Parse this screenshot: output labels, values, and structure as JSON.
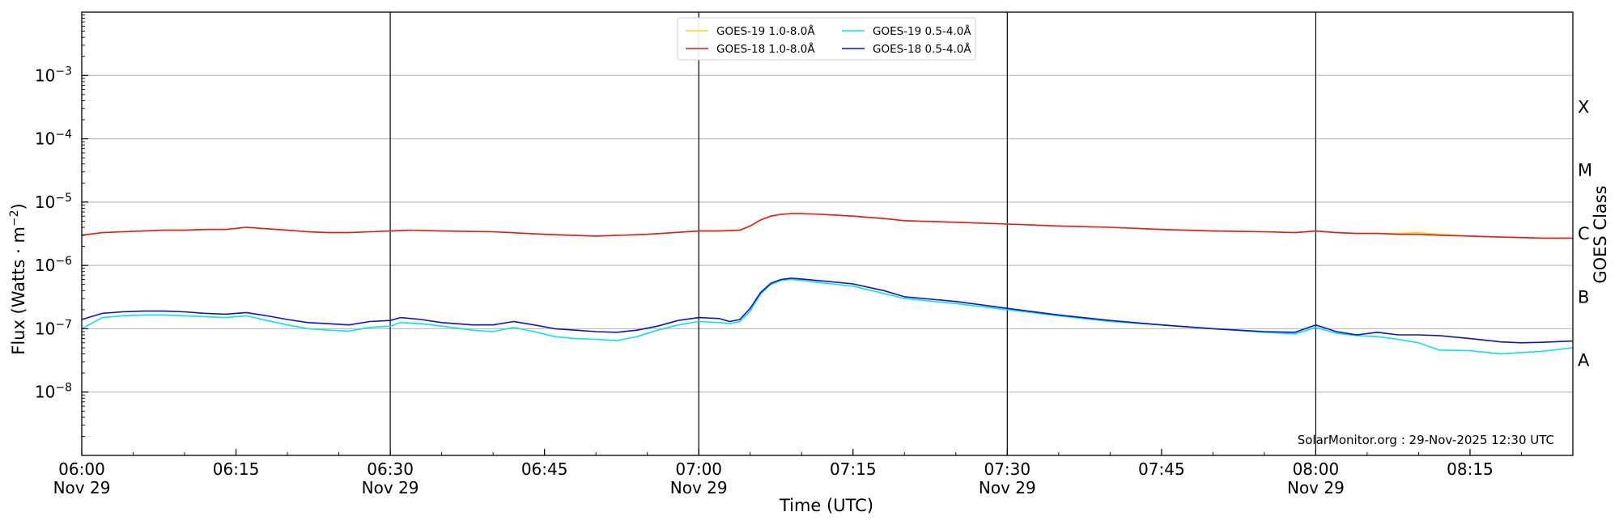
{
  "chart_data": {
    "type": "line",
    "ylabel": "Flux (Watts · m⁻²)",
    "xlabel": "Time (UTC)",
    "right_label": "GOES Class",
    "footer": "SolarMonitor.org : 29-Nov-2025 12:30 UTC",
    "y_scale": "log",
    "ylim": [
      1e-09,
      0.01
    ],
    "xlim": [
      "06:00",
      "08:25"
    ],
    "y_ticks": [
      {
        "value": 1e-08,
        "base": "10",
        "exp": "−8"
      },
      {
        "value": 1e-07,
        "base": "10",
        "exp": "−7"
      },
      {
        "value": 1e-06,
        "base": "10",
        "exp": "−6"
      },
      {
        "value": 1e-05,
        "base": "10",
        "exp": "−5"
      },
      {
        "value": 0.0001,
        "base": "10",
        "exp": "−4"
      },
      {
        "value": 0.001,
        "base": "10",
        "exp": "−3"
      }
    ],
    "x_ticks": [
      {
        "time": "06:00",
        "label": "06:00",
        "sub": "Nov 29"
      },
      {
        "time": "06:15",
        "label": "06:15",
        "sub": ""
      },
      {
        "time": "06:30",
        "label": "06:30",
        "sub": "Nov 29"
      },
      {
        "time": "06:45",
        "label": "06:45",
        "sub": ""
      },
      {
        "time": "07:00",
        "label": "07:00",
        "sub": "Nov 29"
      },
      {
        "time": "07:15",
        "label": "07:15",
        "sub": ""
      },
      {
        "time": "07:30",
        "label": "07:30",
        "sub": "Nov 29"
      },
      {
        "time": "07:45",
        "label": "07:45",
        "sub": ""
      },
      {
        "time": "08:00",
        "label": "08:00",
        "sub": "Nov 29"
      },
      {
        "time": "08:15",
        "label": "08:15",
        "sub": ""
      }
    ],
    "vertical_lines": [
      "06:30",
      "07:00",
      "07:30",
      "08:00"
    ],
    "goes_classes": [
      {
        "label": "A",
        "value": 3.16e-08
      },
      {
        "label": "B",
        "value": 3.16e-07
      },
      {
        "label": "C",
        "value": 3.16e-06
      },
      {
        "label": "M",
        "value": 3.16e-05
      },
      {
        "label": "X",
        "value": 0.000316
      }
    ],
    "grid": true,
    "legend_position": "top-center",
    "series": [
      {
        "name": "GOES-19 1.0-8.0Å",
        "color": "#ffd700",
        "x": [
          "06:00",
          "06:02",
          "06:04",
          "06:06",
          "06:08",
          "06:10",
          "06:12",
          "06:14",
          "06:16",
          "06:18",
          "06:20",
          "06:22",
          "06:24",
          "06:26",
          "06:28",
          "06:30",
          "06:32",
          "06:35",
          "06:40",
          "06:45",
          "06:50",
          "06:55",
          "07:00",
          "07:02",
          "07:04",
          "07:05",
          "07:06",
          "07:07",
          "07:08",
          "07:09",
          "07:10",
          "07:12",
          "07:15",
          "07:18",
          "07:20",
          "07:25",
          "07:30",
          "07:35",
          "07:40",
          "07:45",
          "07:50",
          "07:55",
          "07:58",
          "08:00",
          "08:02",
          "08:04",
          "08:06",
          "08:08",
          "08:10",
          "08:12",
          "08:15",
          "08:18",
          "08:20",
          "08:22",
          "08:25"
        ],
        "y": [
          3e-06,
          3.3e-06,
          3.4e-06,
          3.5e-06,
          3.6e-06,
          3.6e-06,
          3.7e-06,
          3.7e-06,
          4e-06,
          3.8e-06,
          3.6e-06,
          3.4e-06,
          3.3e-06,
          3.3e-06,
          3.4e-06,
          3.5e-06,
          3.6e-06,
          3.5e-06,
          3.4e-06,
          3.1e-06,
          2.9e-06,
          3.1e-06,
          3.5e-06,
          3.5e-06,
          3.6e-06,
          4.2e-06,
          5.2e-06,
          6e-06,
          6.4e-06,
          6.6e-06,
          6.6e-06,
          6.4e-06,
          6e-06,
          5.5e-06,
          5.1e-06,
          4.8e-06,
          4.5e-06,
          4.2e-06,
          4e-06,
          3.7e-06,
          3.5e-06,
          3.4e-06,
          3.3e-06,
          3.5e-06,
          3.3e-06,
          3.2e-06,
          3.2e-06,
          3.2e-06,
          3.3e-06,
          3.1e-06,
          2.9e-06,
          2.8e-06,
          2.75e-06,
          2.7e-06,
          2.7e-06
        ]
      },
      {
        "name": "GOES-18 1.0-8.0Å",
        "color": "#e31a1c",
        "x": [
          "06:00",
          "06:02",
          "06:04",
          "06:06",
          "06:08",
          "06:10",
          "06:12",
          "06:14",
          "06:16",
          "06:18",
          "06:20",
          "06:22",
          "06:24",
          "06:26",
          "06:28",
          "06:30",
          "06:32",
          "06:35",
          "06:40",
          "06:45",
          "06:50",
          "06:55",
          "07:00",
          "07:02",
          "07:04",
          "07:05",
          "07:06",
          "07:07",
          "07:08",
          "07:09",
          "07:10",
          "07:12",
          "07:15",
          "07:18",
          "07:20",
          "07:25",
          "07:30",
          "07:35",
          "07:40",
          "07:45",
          "07:50",
          "07:55",
          "07:58",
          "08:00",
          "08:02",
          "08:04",
          "08:06",
          "08:08",
          "08:10",
          "08:12",
          "08:15",
          "08:18",
          "08:20",
          "08:22",
          "08:25"
        ],
        "y": [
          3e-06,
          3.3e-06,
          3.4e-06,
          3.5e-06,
          3.6e-06,
          3.6e-06,
          3.7e-06,
          3.7e-06,
          4e-06,
          3.8e-06,
          3.6e-06,
          3.4e-06,
          3.3e-06,
          3.3e-06,
          3.4e-06,
          3.5e-06,
          3.6e-06,
          3.5e-06,
          3.4e-06,
          3.1e-06,
          2.9e-06,
          3.1e-06,
          3.5e-06,
          3.5e-06,
          3.6e-06,
          4.2e-06,
          5.2e-06,
          6e-06,
          6.4e-06,
          6.6e-06,
          6.6e-06,
          6.4e-06,
          6e-06,
          5.5e-06,
          5.1e-06,
          4.8e-06,
          4.5e-06,
          4.2e-06,
          4e-06,
          3.7e-06,
          3.5e-06,
          3.4e-06,
          3.3e-06,
          3.5e-06,
          3.3e-06,
          3.2e-06,
          3.2e-06,
          3.1e-06,
          3.1e-06,
          3e-06,
          2.9e-06,
          2.8e-06,
          2.75e-06,
          2.7e-06,
          2.7e-06
        ]
      },
      {
        "name": "GOES-19 0.5-4.0Å",
        "color": "#00e5ee",
        "x": [
          "06:00",
          "06:02",
          "06:04",
          "06:06",
          "06:08",
          "06:10",
          "06:12",
          "06:14",
          "06:16",
          "06:18",
          "06:20",
          "06:22",
          "06:24",
          "06:26",
          "06:28",
          "06:30",
          "06:31",
          "06:33",
          "06:35",
          "06:38",
          "06:40",
          "06:42",
          "06:44",
          "06:46",
          "06:48",
          "06:50",
          "06:52",
          "06:54",
          "06:56",
          "06:58",
          "07:00",
          "07:02",
          "07:03",
          "07:04",
          "07:05",
          "07:06",
          "07:07",
          "07:08",
          "07:09",
          "07:10",
          "07:12",
          "07:15",
          "07:18",
          "07:20",
          "07:25",
          "07:30",
          "07:35",
          "07:40",
          "07:45",
          "07:50",
          "07:55",
          "07:58",
          "08:00",
          "08:02",
          "08:04",
          "08:06",
          "08:08",
          "08:10",
          "08:12",
          "08:15",
          "08:18",
          "08:20",
          "08:22",
          "08:25"
        ],
        "y": [
          1e-07,
          1.5e-07,
          1.6e-07,
          1.65e-07,
          1.65e-07,
          1.6e-07,
          1.55e-07,
          1.5e-07,
          1.6e-07,
          1.35e-07,
          1.15e-07,
          1e-07,
          9.5e-08,
          9.2e-08,
          1.05e-07,
          1.1e-07,
          1.25e-07,
          1.2e-07,
          1.1e-07,
          9.5e-08,
          9e-08,
          1.05e-07,
          9e-08,
          7.5e-08,
          7e-08,
          6.8e-08,
          6.5e-08,
          7.5e-08,
          9.5e-08,
          1.15e-07,
          1.3e-07,
          1.25e-07,
          1.2e-07,
          1.3e-07,
          1.9e-07,
          3.5e-07,
          5e-07,
          5.8e-07,
          6e-07,
          5.8e-07,
          5.3e-07,
          4.7e-07,
          3.6e-07,
          3e-07,
          2.5e-07,
          2e-07,
          1.6e-07,
          1.3e-07,
          1.15e-07,
          1e-07,
          8.8e-08,
          8.3e-08,
          1.05e-07,
          8.5e-08,
          7.8e-08,
          7.5e-08,
          6.8e-08,
          6e-08,
          4.6e-08,
          4.5e-08,
          4e-08,
          4.2e-08,
          4.4e-08,
          5e-08
        ]
      },
      {
        "name": "GOES-18 0.5-4.0Å",
        "color": "#1010d0",
        "x": [
          "06:00",
          "06:02",
          "06:04",
          "06:06",
          "06:08",
          "06:10",
          "06:12",
          "06:14",
          "06:16",
          "06:18",
          "06:20",
          "06:22",
          "06:24",
          "06:26",
          "06:28",
          "06:30",
          "06:31",
          "06:33",
          "06:35",
          "06:38",
          "06:40",
          "06:42",
          "06:44",
          "06:46",
          "06:48",
          "06:50",
          "06:52",
          "06:54",
          "06:56",
          "06:58",
          "07:00",
          "07:02",
          "07:03",
          "07:04",
          "07:05",
          "07:06",
          "07:07",
          "07:08",
          "07:09",
          "07:10",
          "07:12",
          "07:15",
          "07:18",
          "07:20",
          "07:25",
          "07:30",
          "07:35",
          "07:40",
          "07:45",
          "07:50",
          "07:55",
          "07:58",
          "08:00",
          "08:02",
          "08:04",
          "08:06",
          "08:08",
          "08:10",
          "08:12",
          "08:15",
          "08:18",
          "08:20",
          "08:22",
          "08:25"
        ],
        "y": [
          1.4e-07,
          1.75e-07,
          1.85e-07,
          1.9e-07,
          1.9e-07,
          1.85e-07,
          1.75e-07,
          1.7e-07,
          1.8e-07,
          1.6e-07,
          1.4e-07,
          1.25e-07,
          1.2e-07,
          1.15e-07,
          1.3e-07,
          1.35e-07,
          1.5e-07,
          1.4e-07,
          1.25e-07,
          1.15e-07,
          1.15e-07,
          1.3e-07,
          1.15e-07,
          1e-07,
          9.5e-08,
          9e-08,
          8.8e-08,
          9.5e-08,
          1.1e-07,
          1.35e-07,
          1.5e-07,
          1.45e-07,
          1.3e-07,
          1.4e-07,
          2.1e-07,
          3.7e-07,
          5.2e-07,
          6e-07,
          6.3e-07,
          6.1e-07,
          5.7e-07,
          5.1e-07,
          4e-07,
          3.2e-07,
          2.7e-07,
          2.1e-07,
          1.65e-07,
          1.35e-07,
          1.15e-07,
          1e-07,
          9e-08,
          8.8e-08,
          1.15e-07,
          9e-08,
          8e-08,
          8.8e-08,
          8e-08,
          8e-08,
          7.8e-08,
          7e-08,
          6.2e-08,
          6e-08,
          6.1e-08,
          6.4e-08
        ]
      }
    ]
  }
}
